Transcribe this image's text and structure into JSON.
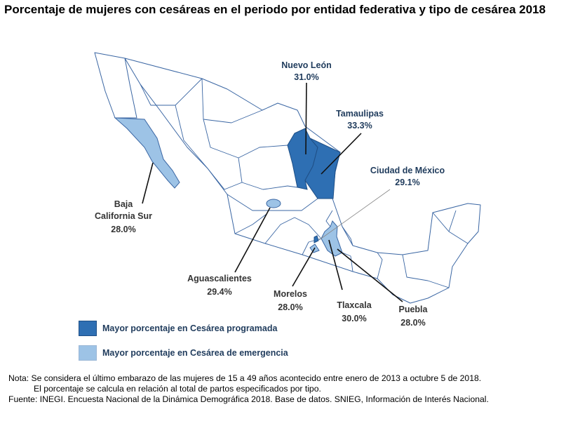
{
  "title": "Porcentaje de mujeres con cesáreas en el periodo por entidad federativa y tipo de cesárea 2018",
  "colors": {
    "programada": "#2e6fb3",
    "emergencia": "#9dc3e6",
    "outline": "#2f5f9e"
  },
  "states": {
    "nuevo_leon": {
      "name": "Nuevo León",
      "value": "31.0%",
      "category": "programada"
    },
    "tamaulipas": {
      "name": "Tamaulipas",
      "value": "33.3%",
      "category": "programada"
    },
    "cdmx": {
      "name": "Ciudad de México",
      "value": "29.1%",
      "category": "programada"
    },
    "bcs": {
      "name_line1": "Baja",
      "name_line2": "California Sur",
      "value": "28.0%",
      "category": "emergencia"
    },
    "aguascalientes": {
      "name": "Aguascalientes",
      "value": "29.4%",
      "category": "emergencia"
    },
    "morelos": {
      "name": "Morelos",
      "value": "28.0%",
      "category": "emergencia"
    },
    "tlaxcala": {
      "name": "Tlaxcala",
      "value": "30.0%",
      "category": "emergencia"
    },
    "puebla": {
      "name": "Puebla",
      "value": "28.0%",
      "category": "emergencia"
    }
  },
  "legend": {
    "programada": "Mayor porcentaje en Cesárea programada",
    "emergencia": "Mayor porcentaje en Cesárea de emergencia"
  },
  "notes": {
    "nota_line1": "Nota: Se considera el último embarazo de las mujeres de 15 a 49 años acontecido entre enero de 2013 a octubre 5 de 2018.",
    "nota_line2": "El porcentaje se calcula en relación al total de partos especificados por tipo.",
    "fuente": "Fuente: INEGI. Encuesta Nacional de la Dinámica Demográfica 2018. Base de datos. SNIEG, Información de Interés Nacional."
  }
}
